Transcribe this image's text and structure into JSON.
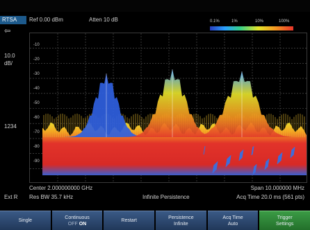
{
  "header": {
    "mode": "RTSA",
    "ref_level": "Ref 0.00 dBm",
    "atten": "Atten 10 dB",
    "legend": [
      "0.1%",
      "1%",
      "10%",
      "100%"
    ]
  },
  "sidebar": {
    "scale_value": "10.0",
    "scale_unit": "dB/",
    "marker_label": "1234",
    "ext_ref": "Ext R"
  },
  "plot": {
    "y_ticks": [
      "-10",
      "-20",
      "-30",
      "-40",
      "-50",
      "-60",
      "-70",
      "-80",
      "-90"
    ]
  },
  "footer": {
    "center": "Center 2.000000000 GHz",
    "span": "Span 10.000000 MHz",
    "res_bw": "Res BW 35.7 kHz",
    "persistence": "Infinite Persistence",
    "acq_time": "Acq Time 20.0 ms (561 pts)"
  },
  "softkeys": {
    "single": "Single",
    "continuous": "Continuous",
    "continuous_off": "OFF",
    "continuous_on": "ON",
    "restart": "Restart",
    "persistence_title": "Persistence",
    "persistence_value": "Infinite",
    "acq_time_title": "Acq Time",
    "acq_time_value": "Auto",
    "trigger_title": "Trigger",
    "trigger_value": "Settings"
  }
}
